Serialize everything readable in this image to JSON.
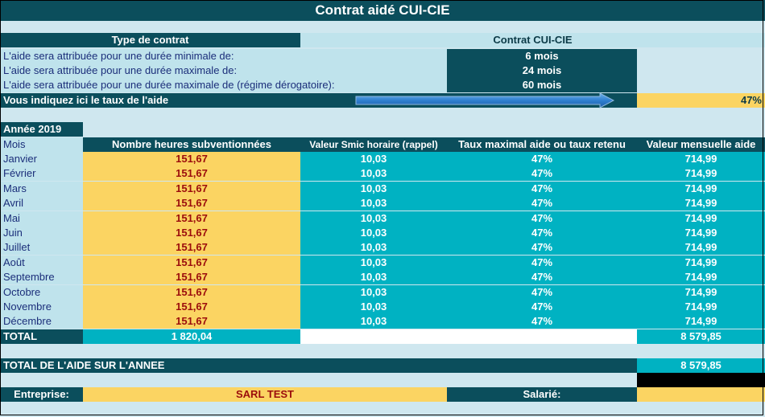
{
  "title": "Contrat aidé CUI-CIE",
  "contract": {
    "type_label": "Type de contrat",
    "type_value": "Contrat CUI-CIE",
    "rows": [
      {
        "label": "L'aide sera attribuée pour une durée minimale de:",
        "value": "6 mois"
      },
      {
        "label": "L'aide sera attribuée pour une durée maximale de:",
        "value": "24 mois"
      },
      {
        "label": "L'aide sera attribuée pour une durée maximale de (régime dérogatoire):",
        "value": "60 mois"
      }
    ],
    "rate_label": "Vous indiquez ici le taux de l'aide",
    "rate_value": "47%"
  },
  "year_label": "Année 2019",
  "table": {
    "headers": [
      "Mois",
      "Nombre heures subventionnées",
      "Valeur Smic horaire (rappel)",
      "Taux maximal aide ou taux retenu",
      "Valeur mensuelle aide"
    ],
    "rows": [
      [
        "Janvier",
        "151,67",
        "10,03",
        "47%",
        "714,99"
      ],
      [
        "Février",
        "151,67",
        "10,03",
        "47%",
        "714,99"
      ],
      [
        "Mars",
        "151,67",
        "10,03",
        "47%",
        "714,99"
      ],
      [
        "Avril",
        "151,67",
        "10,03",
        "47%",
        "714,99"
      ],
      [
        "Mai",
        "151,67",
        "10,03",
        "47%",
        "714,99"
      ],
      [
        "Juin",
        "151,67",
        "10,03",
        "47%",
        "714,99"
      ],
      [
        "Juillet",
        "151,67",
        "10,03",
        "47%",
        "714,99"
      ],
      [
        "Août",
        "151,67",
        "10,03",
        "47%",
        "714,99"
      ],
      [
        "Septembre",
        "151,67",
        "10,03",
        "47%",
        "714,99"
      ],
      [
        "Octobre",
        "151,67",
        "10,03",
        "47%",
        "714,99"
      ],
      [
        "Novembre",
        "151,67",
        "10,03",
        "47%",
        "714,99"
      ],
      [
        "Décembre",
        "151,67",
        "10,03",
        "47%",
        "714,99"
      ]
    ],
    "total_label": "TOTAL",
    "total_hours": "1 820,04",
    "total_amount": "8 579,85"
  },
  "annual": {
    "label": "TOTAL DE L'AIDE SUR L'ANNEE",
    "value": "8 579,85"
  },
  "footer": {
    "company_label": "Entreprise:",
    "company_value": "SARL TEST",
    "employee_label": "Salarié:",
    "employee_value": ""
  },
  "colors": {
    "dark": "#0b4e5c",
    "light": "#bfe3ec",
    "teal": "#00b2c2",
    "gold": "#fbd462",
    "red_text": "#9b0c0c",
    "label_text": "#1b2e7a"
  },
  "icons": {
    "arrow": "arrow-right-icon"
  }
}
